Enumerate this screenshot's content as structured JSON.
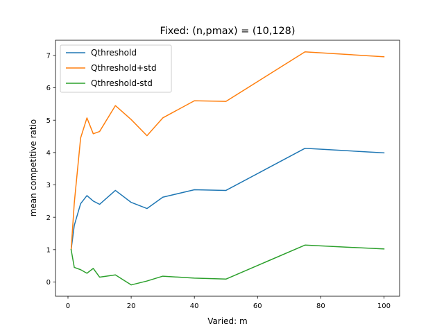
{
  "chart_data": {
    "type": "line",
    "title": "Fixed: (n,pmax) = (10,128)",
    "xlabel": "Varied: m",
    "ylabel": "mean competitive ratio",
    "xlim": [
      -3.95,
      104.95
    ],
    "ylim": [
      -0.44,
      7.47
    ],
    "x_ticks": [
      0,
      20,
      40,
      60,
      80,
      100
    ],
    "y_ticks": [
      0,
      1,
      2,
      3,
      4,
      5,
      6,
      7
    ],
    "grid": false,
    "legend_position": "top-left",
    "x": [
      1,
      2,
      4,
      6,
      8,
      10,
      15,
      20,
      25,
      30,
      40,
      50,
      75,
      100
    ],
    "series": [
      {
        "name": "Qthreshold",
        "color": "#1f77b4",
        "values": [
          1.0,
          1.75,
          2.42,
          2.67,
          2.5,
          2.4,
          2.83,
          2.46,
          2.27,
          2.62,
          2.85,
          2.83,
          4.13,
          3.99
        ]
      },
      {
        "name": "Qthreshold+std",
        "color": "#ff7f0e",
        "values": [
          1.0,
          2.45,
          4.45,
          5.07,
          4.58,
          4.65,
          5.45,
          5.02,
          4.52,
          5.07,
          5.6,
          5.58,
          7.11,
          6.96
        ]
      },
      {
        "name": "Qthreshold-std",
        "color": "#2ca02c",
        "values": [
          1.0,
          0.45,
          0.38,
          0.27,
          0.42,
          0.15,
          0.22,
          -0.09,
          0.03,
          0.18,
          0.12,
          0.09,
          1.14,
          1.02
        ]
      }
    ]
  }
}
